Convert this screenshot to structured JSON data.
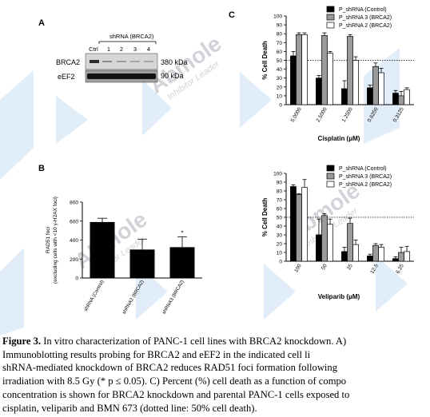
{
  "panel_labels": {
    "a": "A",
    "b": "B",
    "c": "C"
  },
  "blot": {
    "group_label": "shRNA (BRCA2)",
    "lanes": [
      "Ctrl",
      "1",
      "2",
      "3",
      "4"
    ],
    "rows": [
      {
        "name": "BRCA2",
        "size": "380 kDa"
      },
      {
        "name": "eEF2",
        "size": "90 kDa"
      }
    ]
  },
  "watermark": {
    "brand": "Abmole",
    "tagline": "Inhibitor Leader"
  },
  "chart_data": [
    {
      "id": "rad51",
      "type": "bar",
      "ylabel_lines": [
        "RAD51 foci",
        "(excluding cells with <10 γ-H2AX foci)"
      ],
      "ylim": [
        0,
        800
      ],
      "yticks": [
        0,
        200,
        400,
        600,
        800
      ],
      "categories": [
        "shRNA (Control)",
        "shRNA2 (BRCA2)",
        "shRNA3 (BRCA2)"
      ],
      "values": [
        590,
        300,
        325
      ],
      "errors": [
        40,
        110,
        110
      ],
      "annotations": [
        "",
        "",
        "*"
      ],
      "colors": [
        "#000000",
        "#000000",
        "#000000"
      ]
    },
    {
      "id": "cisplatin",
      "type": "bar",
      "xlabel": "Cisplatin (μM)",
      "ylabel": "% Cell Death",
      "ylim": [
        0,
        100
      ],
      "yticks": [
        0,
        10,
        20,
        30,
        40,
        50,
        60,
        70,
        80,
        90,
        100
      ],
      "reference_line": 50,
      "categories": [
        "5.0000",
        "2.5000",
        "1.2500",
        "0.6250",
        "0.3125"
      ],
      "series": [
        {
          "name": "P_shRNA (Control)",
          "color": "#000000",
          "values": [
            55,
            30,
            18,
            19,
            13
          ],
          "errors": [
            5,
            3,
            9,
            3,
            3
          ]
        },
        {
          "name": "P_shRNA 3 (BRCA2)",
          "color": "#9a9a9a",
          "values": [
            79,
            78,
            77,
            43,
            10
          ],
          "errors": [
            2,
            3,
            2,
            4,
            5
          ]
        },
        {
          "name": "P_shRNA 2 (BRCA2)",
          "color": "#ffffff",
          "values": [
            79,
            58,
            50,
            36,
            17
          ],
          "errors": [
            2,
            2,
            4,
            5,
            2
          ]
        }
      ]
    },
    {
      "id": "veliparib",
      "type": "bar",
      "xlabel": "Veliparib (μM)",
      "ylabel": "% Cell Death",
      "ylim": [
        0,
        100
      ],
      "yticks": [
        0,
        10,
        20,
        30,
        40,
        50,
        60,
        70,
        80,
        90,
        100
      ],
      "reference_line": 50,
      "categories": [
        "100",
        "50",
        "25",
        "12.5",
        "6.25"
      ],
      "series": [
        {
          "name": "P_shRNA (Control)",
          "color": "#000000",
          "values": [
            85,
            30,
            11,
            6,
            3
          ],
          "errors": [
            2,
            18,
            5,
            2,
            2
          ]
        },
        {
          "name": "P_shRNA 3 (BRCA2)",
          "color": "#9a9a9a",
          "values": [
            76,
            52,
            43,
            18,
            10
          ],
          "errors": [
            1,
            2,
            6,
            2,
            6
          ]
        },
        {
          "name": "P_shRNA 2 (BRCA2)",
          "color": "#ffffff",
          "values": [
            84,
            42,
            19,
            16,
            11
          ],
          "errors": [
            9,
            6,
            5,
            3,
            6
          ]
        }
      ]
    }
  ],
  "caption": {
    "lead": "Figure 3.",
    "lines": [
      " In vitro characterization of PANC-1 cell lines with BRCA2 knockdown. A)",
      "Immunoblotting results probing for BRCA2 and eEF2 in the indicated cell li",
      "shRNA-mediated knockdown of BRCA2 reduces RAD51 foci formation following",
      "irradiation with 8.5 Gy (* p ≤ 0.05). C) Percent (%) cell death as a function of compo",
      "concentration is shown for BRCA2 knockdown and parental PANC-1 cells exposed to",
      "cisplatin, veliparib and BMN 673 (dotted line: 50% cell death)."
    ]
  }
}
